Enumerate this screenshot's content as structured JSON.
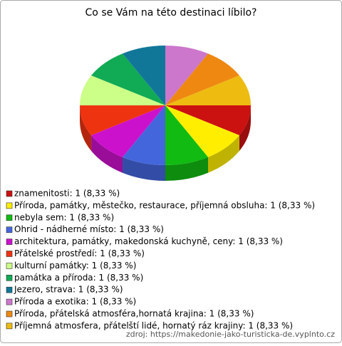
{
  "chart_data": {
    "type": "pie3d",
    "title": "Co se Vám na této destinaci líbilo?",
    "categories": [
      "znamenitosti: 1 (8,33 %)",
      "Příroda, památky, městečko, restaurace, příjemná obsluha: 1 (8,33 %)",
      "nebyla sem: 1 (8,33 %)",
      "Ohrid - nádherné místo: 1 (8,33 %)",
      "architektura, památky, makedonská kuchyně, ceny: 1 (8,33 %)",
      "Přátelské prostředí: 1 (8,33 %)",
      "kulturní památky: 1 (8,33 %)",
      "památka a příroda: 1 (8,33 %)",
      "Jezero, strava: 1 (8,33 %)",
      "Příroda a exotika: 1 (8,33 %)",
      "Příroda, přátelská atmosféra,hornatá krajina: 1 (8,33 %)",
      "Příjemná atmosfera, přátelští lidé, hornatý ráz krajiny: 1 (8,33 %)"
    ],
    "values": [
      1,
      1,
      1,
      1,
      1,
      1,
      1,
      1,
      1,
      1,
      1,
      1
    ],
    "colors": [
      "#cc1111",
      "#ffee00",
      "#11bb11",
      "#4466dd",
      "#cc11cc",
      "#ee3311",
      "#ccff88",
      "#11aa55",
      "#117799",
      "#cc77cc",
      "#ee8811",
      "#eebb11"
    ],
    "source": "zdroj: https://makedonie-jako-turisticka-de.vyplnto.cz"
  }
}
